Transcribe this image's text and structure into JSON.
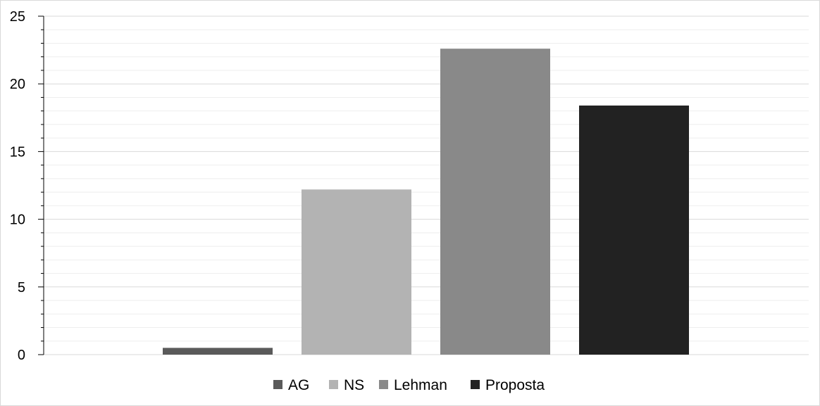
{
  "chart_data": {
    "type": "bar",
    "title": "",
    "xlabel": "",
    "ylabel": "",
    "ylim": [
      0,
      25
    ],
    "major_ticks": [
      0,
      5,
      10,
      15,
      20,
      25
    ],
    "minor_step": 1,
    "grid": true,
    "legend_position": "bottom",
    "series": [
      {
        "name": "AG",
        "value": 0.5,
        "color": "#5a5a5a"
      },
      {
        "name": "NS",
        "value": 12.2,
        "color": "#b3b3b3"
      },
      {
        "name": "Lehman",
        "value": 22.6,
        "color": "#898989"
      },
      {
        "name": "Proposta",
        "value": 18.4,
        "color": "#222222"
      }
    ]
  },
  "colors": {
    "major_grid": "#d9d9d9",
    "minor_grid": "#eeeeee",
    "axis": "#000000"
  }
}
